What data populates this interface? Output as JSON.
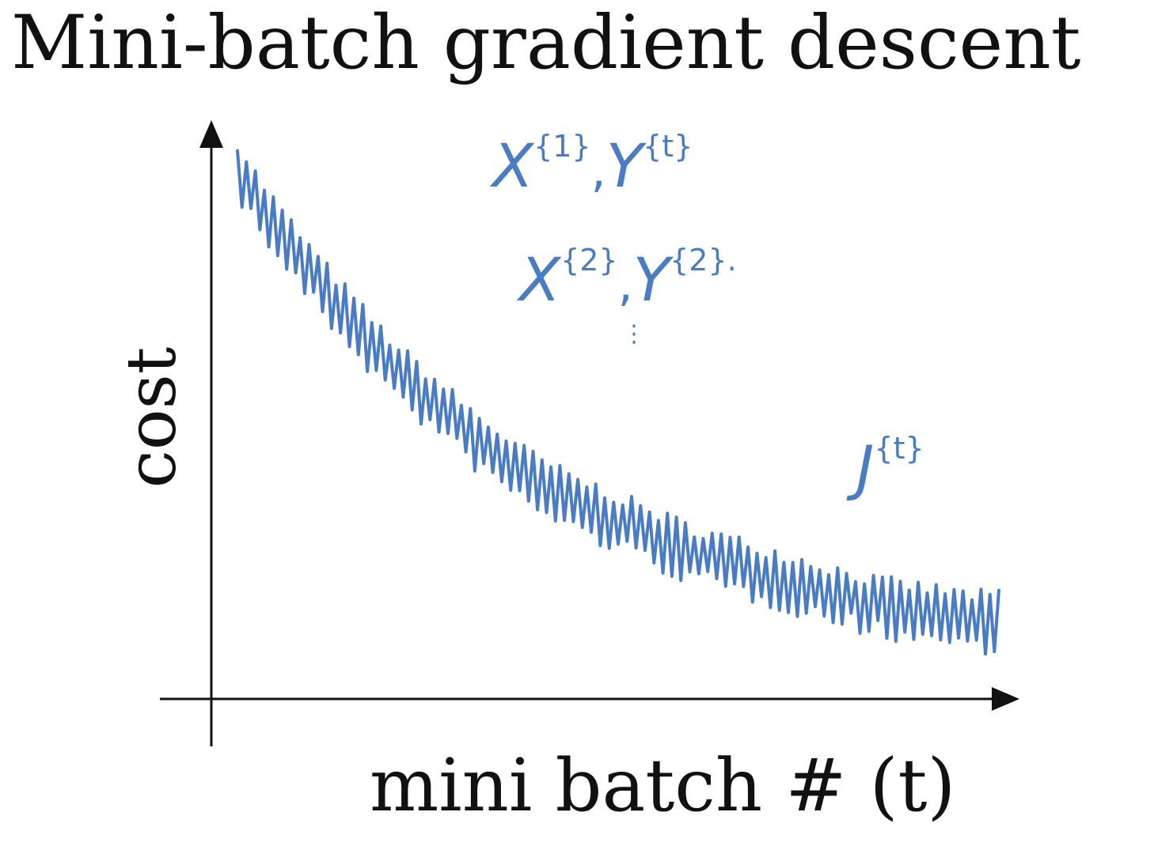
{
  "slide": {
    "title": "Mini-batch gradient descent"
  },
  "annotations": {
    "line1": {
      "x": "X",
      "x_sup": "{1}",
      "sep": ",",
      "y": "Y",
      "y_sup": "{t}"
    },
    "line2": {
      "x": "X",
      "x_sup": "{2}",
      "sep": ",",
      "y": "Y",
      "y_sup": "{2}."
    },
    "ellipsis": "⋮",
    "cost_symbol": {
      "j": "J",
      "j_sup": "{t}"
    }
  },
  "colors": {
    "ink": "#111111",
    "pen": "#4a7cc4",
    "background": "#ffffff"
  },
  "chart_data": {
    "type": "line",
    "xlabel": "mini batch # (t)",
    "ylabel": "cost",
    "title": "",
    "grid": false,
    "legend": "none",
    "axis_ticks": "none",
    "xlim": [
      0,
      100
    ],
    "ylim": [
      0,
      100
    ],
    "series": [
      {
        "noisy": true,
        "x": [
          0,
          2.7,
          5.4,
          8.1,
          10.8,
          13.5,
          16.2,
          18.9,
          21.6,
          24.3,
          27.0,
          29.7,
          32.4,
          35.1,
          37.8,
          40.5,
          43.2,
          45.9,
          48.6,
          51.3,
          54.0,
          56.8,
          59.5,
          62.2,
          64.9,
          67.6,
          70.3,
          73.0,
          75.7,
          78.4,
          81.1,
          83.8,
          86.5,
          89.2,
          91.9,
          94.6,
          97.3,
          100
        ],
        "y": [
          91.0,
          85.0,
          80.0,
          75.5,
          71.0,
          67.0,
          63.0,
          59.0,
          55.5,
          52.5,
          49.5,
          46.5,
          43.5,
          41.0,
          38.5,
          36.5,
          34.5,
          33.0,
          31.5,
          30.0,
          28.5,
          27.0,
          25.5,
          24.5,
          23.5,
          22.5,
          21.5,
          20.5,
          19.5,
          18.5,
          17.5,
          16.5,
          16.0,
          15.5,
          15.0,
          14.5,
          14.0,
          14.0
        ]
      }
    ]
  }
}
